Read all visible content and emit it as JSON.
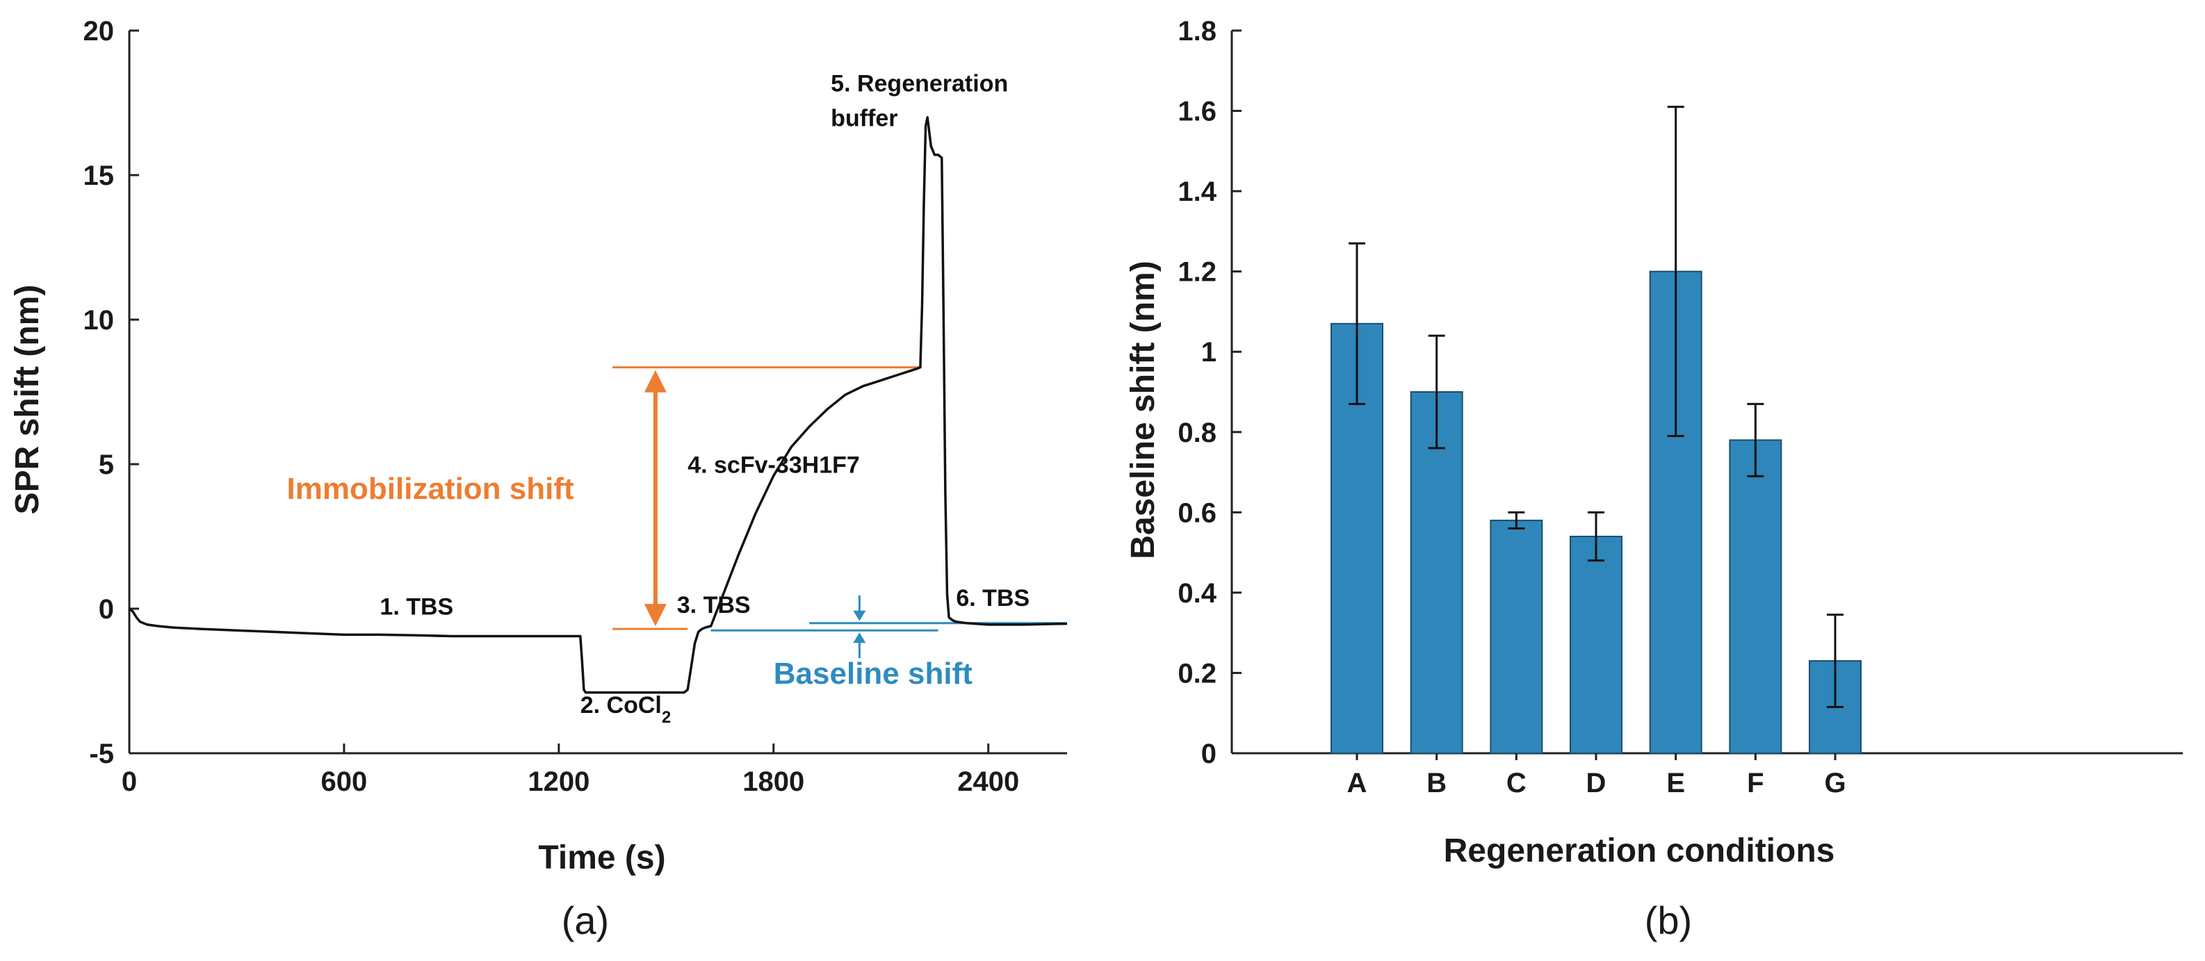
{
  "chart_data": [
    {
      "type": "line",
      "panel": "(a)",
      "title": "",
      "xlabel": "Time (s)",
      "ylabel": "SPR shift (nm)",
      "xlim": [
        0,
        2620
      ],
      "ylim": [
        -5,
        20
      ],
      "xticks": [
        0,
        600,
        1200,
        1800,
        2400
      ],
      "yticks": [
        -5,
        0,
        5,
        10,
        15,
        20
      ],
      "series": [
        {
          "name": "SPR sensorgram",
          "color": "#111111",
          "x": [
            0,
            10,
            20,
            30,
            50,
            80,
            120,
            200,
            300,
            400,
            500,
            600,
            700,
            800,
            900,
            1000,
            1100,
            1200,
            1260,
            1265,
            1270,
            1275,
            1290,
            1350,
            1450,
            1550,
            1560,
            1570,
            1580,
            1590,
            1600,
            1610,
            1625,
            1650,
            1700,
            1750,
            1800,
            1850,
            1900,
            1950,
            2000,
            2050,
            2100,
            2150,
            2200,
            2210,
            2215,
            2220,
            2225,
            2230,
            2240,
            2250,
            2260,
            2270,
            2275,
            2280,
            2285,
            2290,
            2295,
            2300,
            2310,
            2340,
            2400,
            2500,
            2620
          ],
          "y": [
            0,
            -0.1,
            -0.3,
            -0.45,
            -0.55,
            -0.6,
            -0.65,
            -0.7,
            -0.75,
            -0.8,
            -0.85,
            -0.9,
            -0.9,
            -0.92,
            -0.95,
            -0.95,
            -0.95,
            -0.95,
            -0.95,
            -1.8,
            -2.8,
            -2.9,
            -2.9,
            -2.9,
            -2.9,
            -2.9,
            -2.8,
            -2.0,
            -1.2,
            -0.8,
            -0.7,
            -0.65,
            -0.6,
            0.2,
            1.8,
            3.3,
            4.6,
            5.6,
            6.3,
            6.9,
            7.4,
            7.7,
            7.9,
            8.1,
            8.3,
            8.35,
            10.5,
            14.0,
            16.7,
            17.0,
            16.0,
            15.7,
            15.7,
            15.6,
            10.0,
            4.0,
            0.5,
            -0.3,
            -0.35,
            -0.4,
            -0.45,
            -0.5,
            -0.55,
            -0.55,
            -0.52
          ]
        }
      ],
      "annotations": [
        {
          "text": "1. TBS",
          "x": 700,
          "y": -0.2
        },
        {
          "text": "2. CoCl",
          "subscript": "2",
          "x": 1260,
          "y": -3.6
        },
        {
          "text": "3. TBS",
          "x": 1530,
          "y": -0.15
        },
        {
          "text": "4. scFv-33H1F7",
          "x": 1560,
          "y": 4.7
        },
        {
          "text": "5. Regeneration",
          "x": 1960,
          "y": 17.9
        },
        {
          "text": "buffer",
          "x": 1960,
          "y": 16.7
        },
        {
          "text": "6. TBS",
          "x": 2310,
          "y": 0.1
        },
        {
          "text": "Immobilization shift",
          "x": 440,
          "y": 3.8,
          "color": "#ED7D31"
        },
        {
          "text": "Baseline shift",
          "x": 1800,
          "y": -2.6,
          "color": "#2E8BC0"
        }
      ],
      "immobilization_shift": {
        "color": "#ED7D31",
        "baseline_level": -0.7,
        "top_level": 8.35,
        "x_range": [
          1350,
          2210
        ],
        "arrow_x": 1470
      },
      "baseline_shift": {
        "color": "#2E8BC0",
        "lower_level": -0.75,
        "upper_level": -0.5,
        "lower_x_range": [
          1625,
          2260
        ],
        "upper_x_range": [
          1900,
          2620
        ],
        "arrow_x": 2040
      }
    },
    {
      "type": "bar",
      "panel": "(b)",
      "title": "",
      "xlabel": "Regeneration conditions",
      "ylabel": "Baseline shift (nm)",
      "categories": [
        "A",
        "B",
        "C",
        "D",
        "E",
        "F",
        "G"
      ],
      "values": [
        1.07,
        0.9,
        0.58,
        0.54,
        1.2,
        0.78,
        0.23
      ],
      "errors": [
        0.2,
        0.14,
        0.02,
        0.06,
        0.41,
        0.09,
        0.115
      ],
      "bar_color": "#2E86BA",
      "ylim": [
        0,
        1.8
      ],
      "yticks": [
        0,
        0.2,
        0.4,
        0.6,
        0.8,
        1,
        1.2,
        1.4,
        1.6,
        1.8
      ],
      "ytick_labels": [
        "0",
        "0.2",
        "0.4",
        "0.6",
        "0.8",
        "1",
        "1.2",
        "1.4",
        "1.6",
        "1.8"
      ]
    }
  ]
}
